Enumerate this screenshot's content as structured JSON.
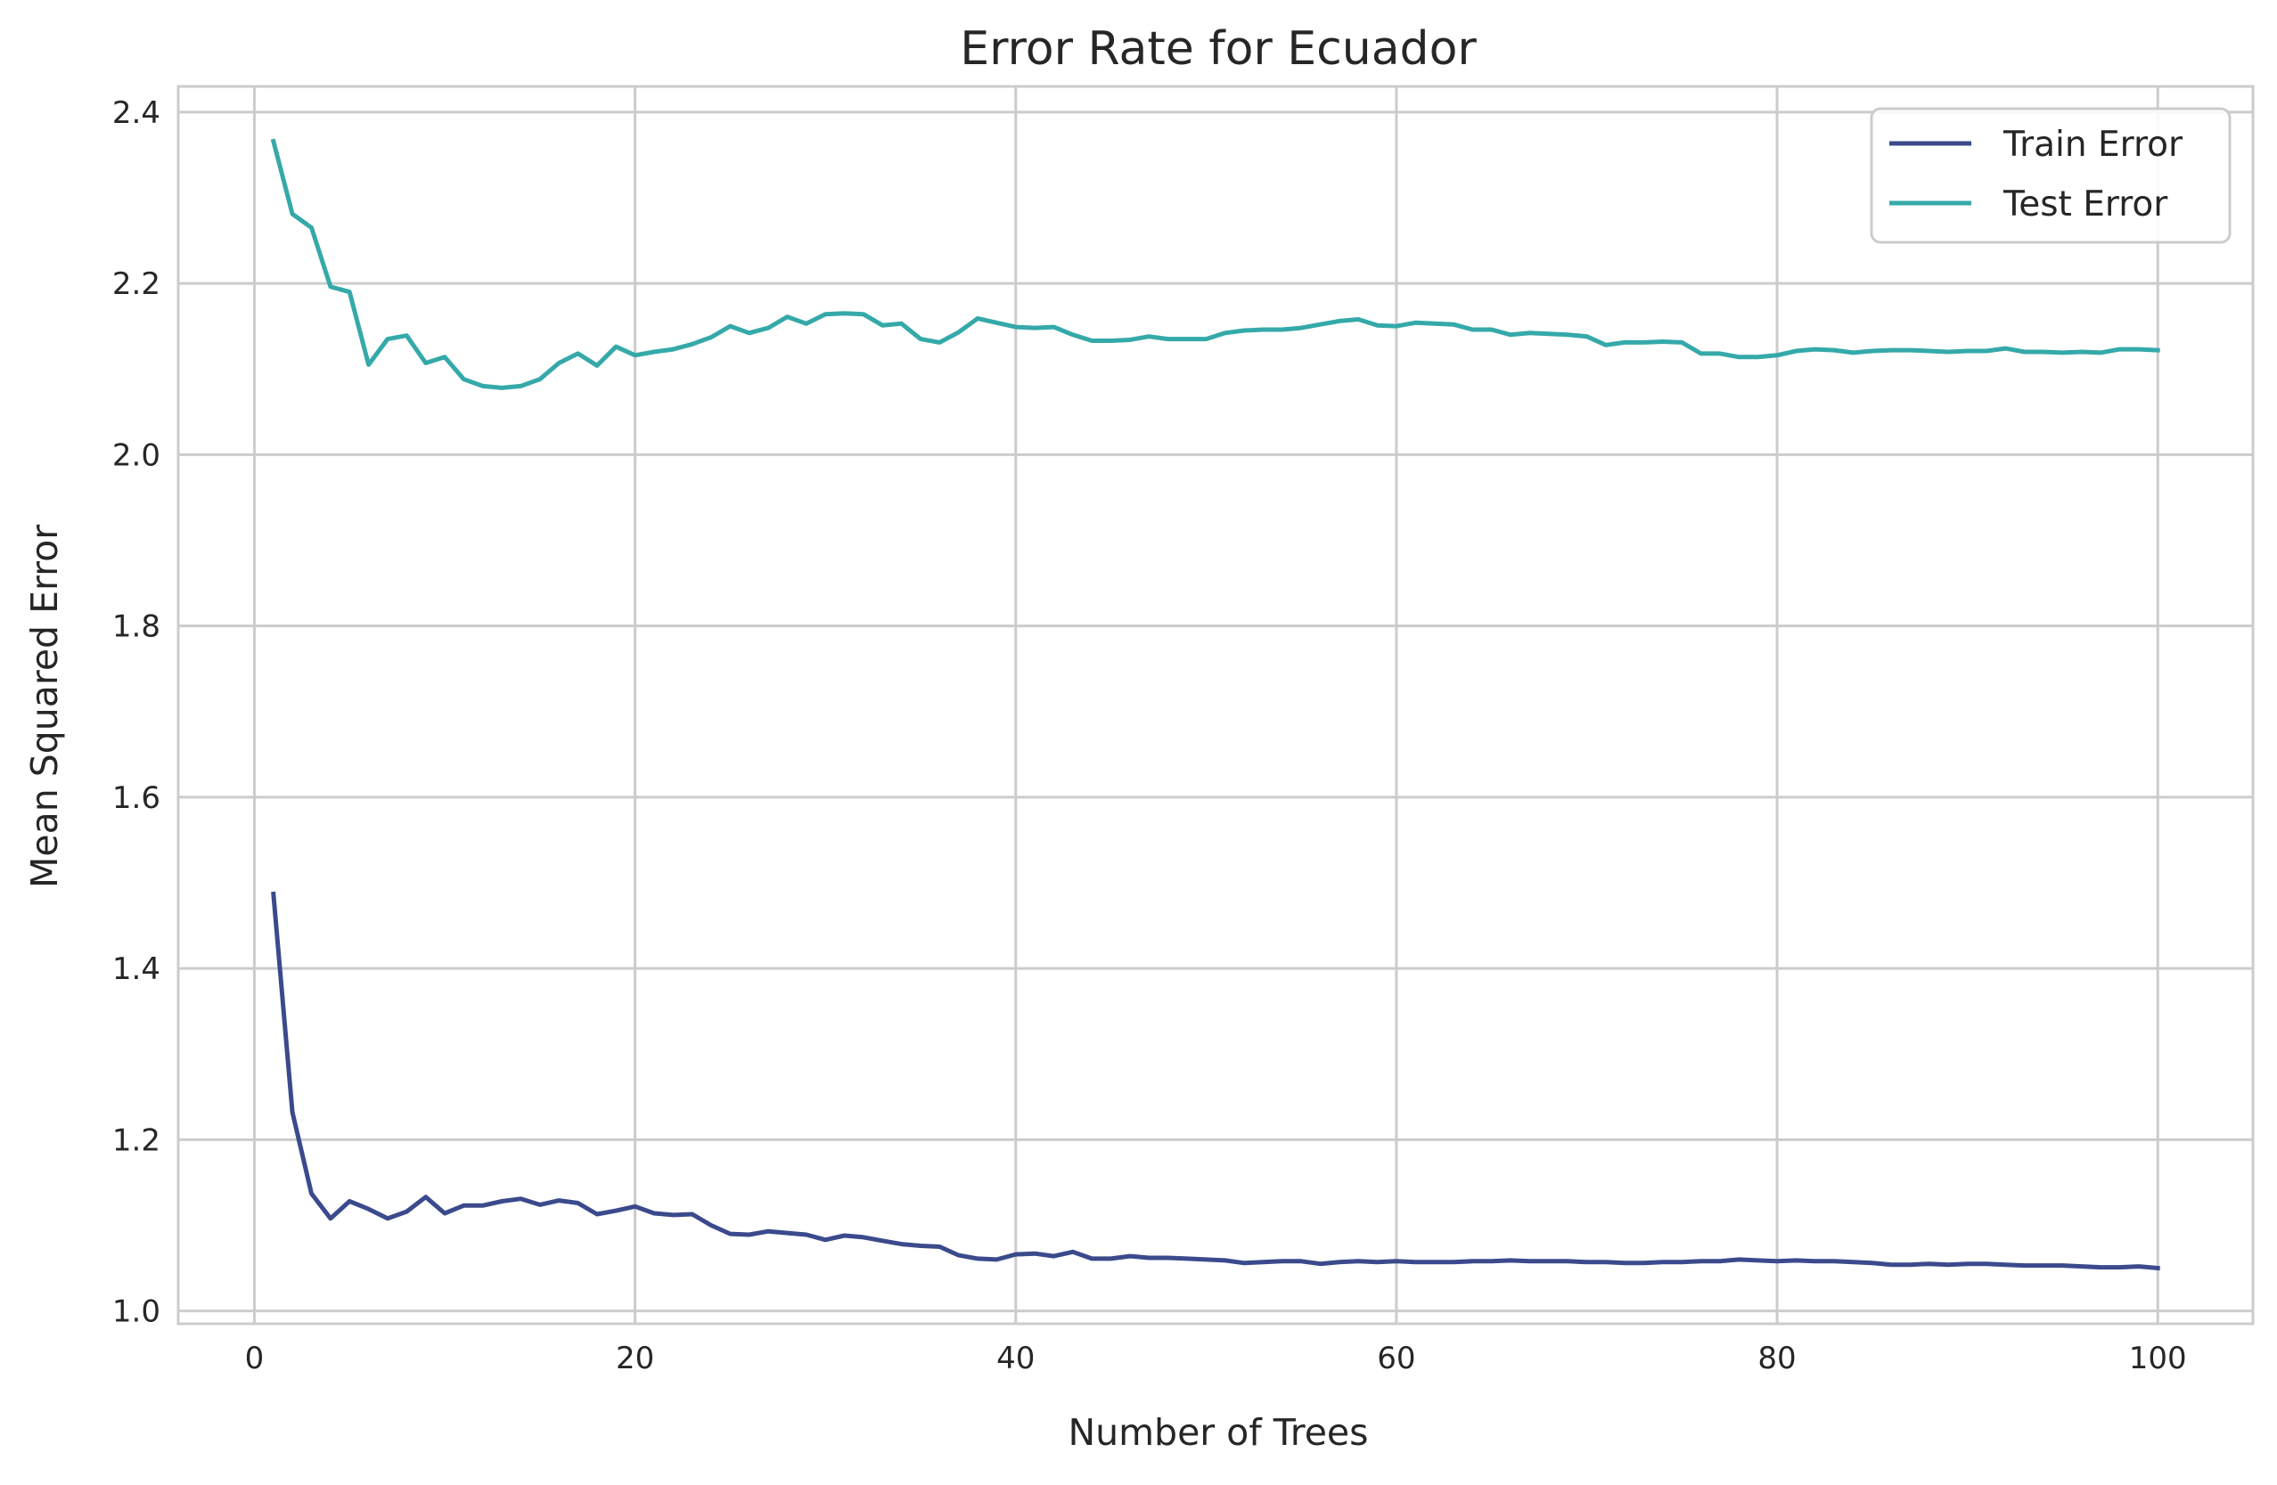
{
  "chart_data": {
    "type": "line",
    "title": "Error Rate for Ecuador",
    "xlabel": "Number of Trees",
    "ylabel": "Mean Squared Error",
    "xlim": [
      -4,
      105
    ],
    "ylim": [
      0.985,
      2.43
    ],
    "xticks": [
      0,
      20,
      40,
      60,
      80,
      100
    ],
    "yticks": [
      1.0,
      1.2,
      1.4,
      1.6,
      1.8,
      2.0,
      2.2,
      2.4
    ],
    "xtick_labels": [
      "0",
      "20",
      "40",
      "60",
      "80",
      "100"
    ],
    "ytick_labels": [
      "1.0",
      "1.2",
      "1.4",
      "1.6",
      "1.8",
      "2.0",
      "2.2",
      "2.4"
    ],
    "grid": true,
    "legend_position": "top-right",
    "x": [
      1,
      2,
      3,
      4,
      5,
      6,
      7,
      8,
      9,
      10,
      11,
      12,
      13,
      14,
      15,
      16,
      17,
      18,
      19,
      20,
      21,
      22,
      23,
      24,
      25,
      26,
      27,
      28,
      29,
      30,
      31,
      32,
      33,
      34,
      35,
      36,
      37,
      38,
      39,
      40,
      41,
      42,
      43,
      44,
      45,
      46,
      47,
      48,
      49,
      50,
      51,
      52,
      53,
      54,
      55,
      56,
      57,
      58,
      59,
      60,
      61,
      62,
      63,
      64,
      65,
      66,
      67,
      68,
      69,
      70,
      71,
      72,
      73,
      74,
      75,
      76,
      77,
      78,
      79,
      80,
      81,
      82,
      83,
      84,
      85,
      86,
      87,
      88,
      89,
      90,
      91,
      92,
      93,
      94,
      95,
      96,
      97,
      98,
      99,
      100
    ],
    "series": [
      {
        "name": "Train Error",
        "color": "#3b4a8c",
        "values": [
          1.487,
          1.232,
          1.137,
          1.108,
          1.128,
          1.119,
          1.108,
          1.116,
          1.133,
          1.114,
          1.123,
          1.123,
          1.128,
          1.131,
          1.124,
          1.129,
          1.126,
          1.113,
          1.117,
          1.122,
          1.114,
          1.112,
          1.113,
          1.1,
          1.09,
          1.089,
          1.093,
          1.091,
          1.089,
          1.083,
          1.088,
          1.086,
          1.082,
          1.078,
          1.076,
          1.075,
          1.065,
          1.061,
          1.06,
          1.066,
          1.067,
          1.064,
          1.069,
          1.061,
          1.061,
          1.064,
          1.062,
          1.062,
          1.061,
          1.06,
          1.059,
          1.056,
          1.057,
          1.058,
          1.058,
          1.055,
          1.057,
          1.058,
          1.057,
          1.058,
          1.057,
          1.057,
          1.057,
          1.058,
          1.058,
          1.059,
          1.058,
          1.058,
          1.058,
          1.057,
          1.057,
          1.056,
          1.056,
          1.057,
          1.057,
          1.058,
          1.058,
          1.06,
          1.059,
          1.058,
          1.059,
          1.058,
          1.058,
          1.057,
          1.056,
          1.054,
          1.054,
          1.055,
          1.054,
          1.055,
          1.055,
          1.054,
          1.053,
          1.053,
          1.053,
          1.052,
          1.051,
          1.051,
          1.052,
          1.05
        ]
      },
      {
        "name": "Test Error",
        "color": "#35a9a9",
        "values": [
          2.366,
          2.281,
          2.265,
          2.196,
          2.19,
          2.105,
          2.135,
          2.139,
          2.107,
          2.114,
          2.088,
          2.08,
          2.078,
          2.08,
          2.088,
          2.107,
          2.118,
          2.104,
          2.126,
          2.116,
          2.12,
          2.123,
          2.129,
          2.137,
          2.15,
          2.142,
          2.148,
          2.161,
          2.153,
          2.164,
          2.165,
          2.164,
          2.151,
          2.153,
          2.135,
          2.131,
          2.143,
          2.159,
          2.154,
          2.149,
          2.148,
          2.149,
          2.14,
          2.133,
          2.133,
          2.134,
          2.138,
          2.135,
          2.135,
          2.135,
          2.142,
          2.145,
          2.146,
          2.146,
          2.148,
          2.152,
          2.156,
          2.158,
          2.151,
          2.15,
          2.154,
          2.153,
          2.152,
          2.146,
          2.146,
          2.14,
          2.142,
          2.141,
          2.14,
          2.138,
          2.128,
          2.131,
          2.131,
          2.132,
          2.131,
          2.118,
          2.118,
          2.114,
          2.114,
          2.116,
          2.121,
          2.123,
          2.122,
          2.119,
          2.121,
          2.122,
          2.122,
          2.121,
          2.12,
          2.121,
          2.121,
          2.124,
          2.12,
          2.12,
          2.119,
          2.12,
          2.119,
          2.123,
          2.123,
          2.122
        ]
      }
    ]
  }
}
